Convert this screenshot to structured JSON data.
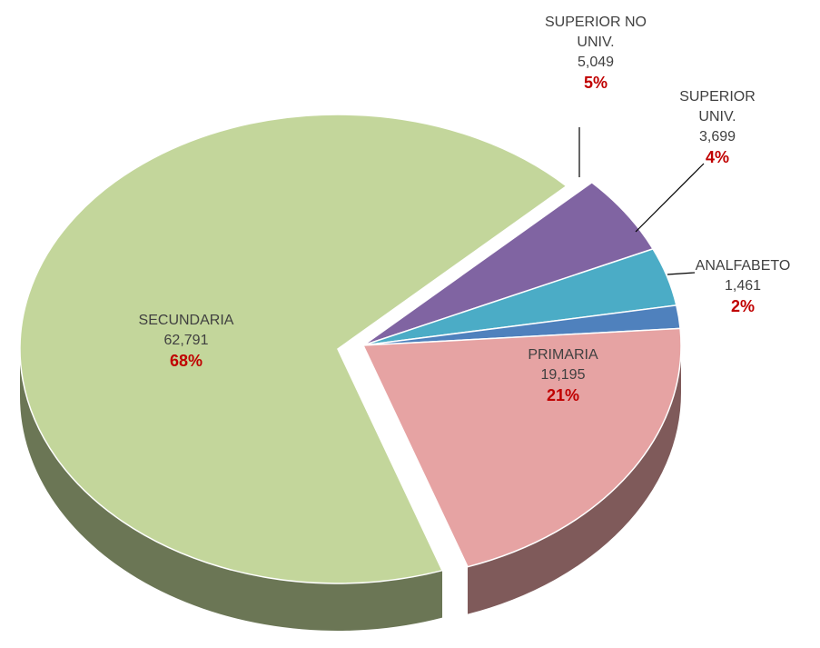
{
  "chart_data": {
    "type": "pie3d",
    "categories": [
      "SUPERIOR NO UNIV.",
      "SUPERIOR UNIV.",
      "ANALFABETO",
      "PRIMARIA",
      "SECUNDARIA"
    ],
    "values": [
      5049,
      3699,
      1461,
      19195,
      62791
    ],
    "value_labels": [
      "5,049",
      "3,699",
      "1,461",
      "19,195",
      "62,791"
    ],
    "percent_labels": [
      "5%",
      "4%",
      "2%",
      "21%",
      "68%"
    ],
    "colors": [
      "#8064a2",
      "#4bacc6",
      "#4f81bd",
      "#e6a3a3",
      "#c3d69b"
    ]
  }
}
